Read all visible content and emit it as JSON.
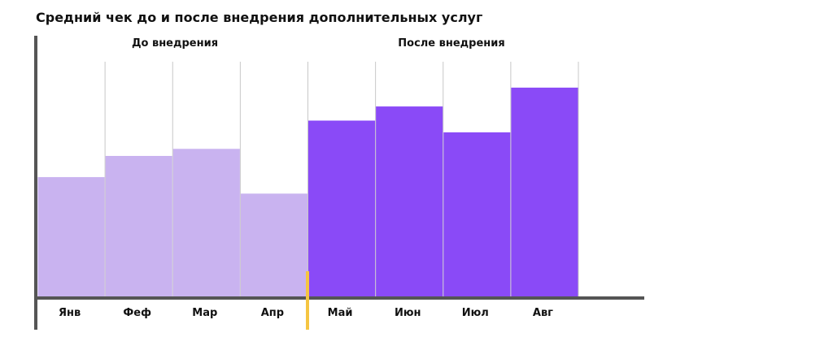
{
  "chart_data": {
    "type": "bar",
    "title": "Средний чек до и после внедрения дополнительных услуг",
    "groups": [
      {
        "label": "До внедрения",
        "categories": [
          "Янв",
          "Феф",
          "Мар",
          "Апр"
        ]
      },
      {
        "label": "После внедрения",
        "categories": [
          "Май",
          "Июн",
          "Июл",
          "Авг"
        ]
      }
    ],
    "categories": [
      "Янв",
      "Феф",
      "Мар",
      "Апр",
      "Май",
      "Июн",
      "Июл",
      "Авг"
    ],
    "values": [
      51,
      60,
      63,
      44,
      75,
      81,
      70,
      89
    ],
    "ylim": [
      0,
      100
    ],
    "xlabel": "",
    "ylabel": "",
    "grid": true,
    "legend": "none",
    "colors": {
      "before": "#C9B3F0",
      "after": "#8A4AF7",
      "axis": "#555555",
      "grid": "#C8C8C8",
      "divider": "#F5C542"
    }
  }
}
